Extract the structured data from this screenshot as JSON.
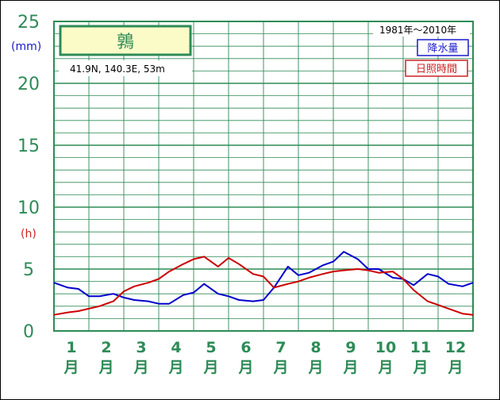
{
  "station": {
    "name": "鶉",
    "coords": "41.9N,  140.3E,  53m"
  },
  "period": "1981年～2010年",
  "legend": {
    "precip_label": "降水量",
    "sun_label": "日照時間"
  },
  "units": {
    "precip": "(mm)",
    "sun": "(h)"
  },
  "colors": {
    "grid": "#2e8b57",
    "precip": "#0000cc",
    "sun": "#cc0000",
    "station_box": "#fbfbc8"
  },
  "chart_data": {
    "type": "line",
    "title": "鶉",
    "y_ticks": [
      "0",
      "5",
      "10",
      "15",
      "20",
      "25"
    ],
    "ylim": [
      0,
      25
    ],
    "xlim": [
      0.5,
      12.5
    ],
    "months": [
      {
        "num": "1",
        "kanji": "月"
      },
      {
        "num": "2",
        "kanji": "月"
      },
      {
        "num": "3",
        "kanji": "月"
      },
      {
        "num": "4",
        "kanji": "月"
      },
      {
        "num": "5",
        "kanji": "月"
      },
      {
        "num": "6",
        "kanji": "月"
      },
      {
        "num": "7",
        "kanji": "月"
      },
      {
        "num": "8",
        "kanji": "月"
      },
      {
        "num": "9",
        "kanji": "月"
      },
      {
        "num": "10",
        "kanji": "月"
      },
      {
        "num": "11",
        "kanji": "月"
      },
      {
        "num": "12",
        "kanji": "月"
      }
    ],
    "series": [
      {
        "name": "降水量",
        "x": [
          0.5,
          0.9,
          1.2,
          1.5,
          1.8,
          2.2,
          2.5,
          2.8,
          3.2,
          3.5,
          3.8,
          4.2,
          4.5,
          4.8,
          5.2,
          5.5,
          5.8,
          6.2,
          6.5,
          6.8,
          7.2,
          7.5,
          7.8,
          8.2,
          8.5,
          8.8,
          9.2,
          9.5,
          9.8,
          10.2,
          10.5,
          10.8,
          11.2,
          11.5,
          11.8,
          12.2,
          12.5
        ],
        "values": [
          3.9,
          3.5,
          3.4,
          2.8,
          2.8,
          3.0,
          2.7,
          2.5,
          2.4,
          2.2,
          2.2,
          2.9,
          3.1,
          3.8,
          3.0,
          2.8,
          2.5,
          2.4,
          2.5,
          3.5,
          5.2,
          4.5,
          4.7,
          5.3,
          5.6,
          6.4,
          5.8,
          5.0,
          5.0,
          4.3,
          4.2,
          3.7,
          4.6,
          4.4,
          3.8,
          3.6,
          3.9
        ]
      },
      {
        "name": "日照時間",
        "x": [
          0.5,
          0.9,
          1.2,
          1.5,
          1.8,
          2.2,
          2.5,
          2.8,
          3.2,
          3.5,
          3.8,
          4.2,
          4.5,
          4.8,
          5.2,
          5.5,
          5.8,
          6.2,
          6.5,
          6.8,
          7.2,
          7.5,
          7.8,
          8.2,
          8.5,
          8.8,
          9.2,
          9.5,
          9.8,
          10.2,
          10.5,
          10.8,
          11.2,
          11.5,
          11.8,
          12.2,
          12.5
        ],
        "values": [
          1.3,
          1.5,
          1.6,
          1.8,
          2.0,
          2.4,
          3.2,
          3.6,
          3.9,
          4.2,
          4.8,
          5.4,
          5.8,
          6.0,
          5.2,
          5.9,
          5.4,
          4.6,
          4.4,
          3.5,
          3.8,
          4.0,
          4.3,
          4.6,
          4.8,
          4.9,
          5.0,
          4.9,
          4.7,
          4.8,
          4.2,
          3.3,
          2.4,
          2.1,
          1.8,
          1.4,
          1.3
        ]
      }
    ]
  }
}
